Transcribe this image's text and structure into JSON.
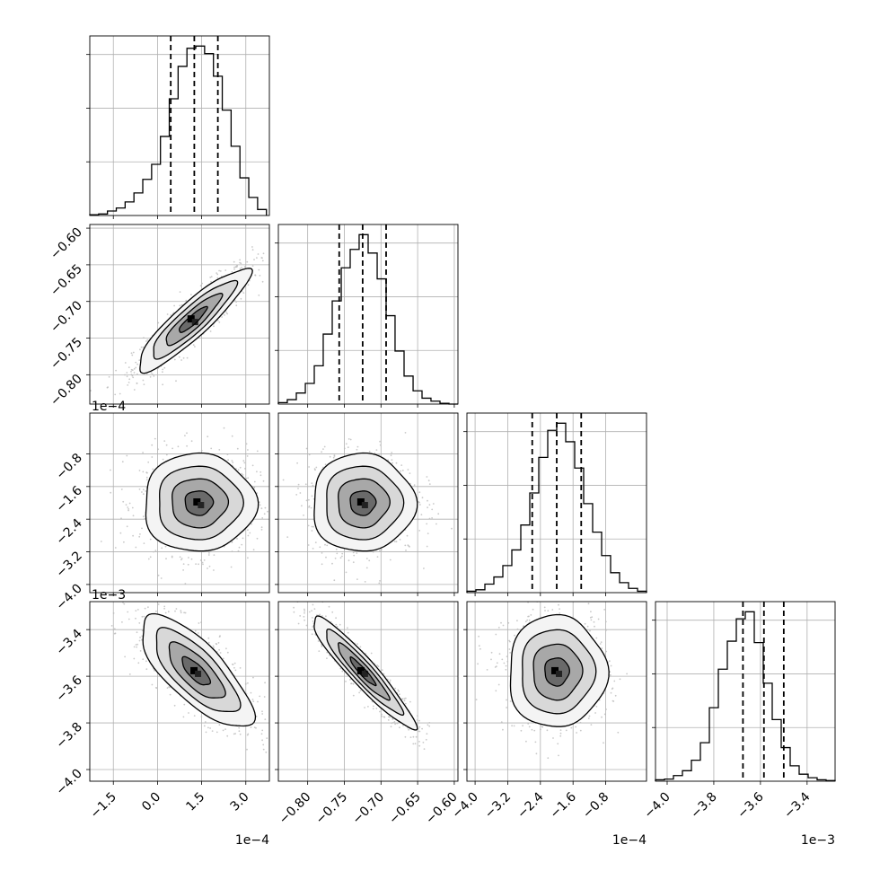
{
  "chart_data": {
    "type": "corner",
    "parameters": [
      {
        "index": 0,
        "range": [
          -2.3,
          3.8
        ],
        "multiplier_label": "1e−4",
        "ticks": [
          -1.5,
          0.0,
          1.5,
          3.0
        ],
        "tick_labels": [
          "−1.5",
          "0.0",
          "1.5",
          "3.0"
        ],
        "quantiles": [
          0.45,
          1.25,
          2.05
        ],
        "histogram": {
          "bin_edges": [
            -2.3,
            -2.0,
            -1.7,
            -1.4,
            -1.1,
            -0.8,
            -0.5,
            -0.2,
            0.1,
            0.4,
            0.7,
            1.0,
            1.3,
            1.6,
            1.9,
            2.2,
            2.5,
            2.8,
            3.1,
            3.4,
            3.7
          ],
          "counts": [
            1,
            2,
            6,
            10,
            18,
            30,
            48,
            68,
            105,
            155,
            198,
            222,
            225,
            215,
            185,
            140,
            92,
            50,
            24,
            8
          ]
        }
      },
      {
        "index": 1,
        "range": [
          -0.84,
          -0.595
        ],
        "ticks": [
          -0.8,
          -0.75,
          -0.7,
          -0.65,
          -0.6
        ],
        "tick_labels": [
          "−0.80",
          "−0.75",
          "−0.70",
          "−0.65",
          "−0.60"
        ],
        "quantiles": [
          -0.757,
          -0.725,
          -0.693
        ],
        "histogram": {
          "bin_edges": [
            -0.84,
            -0.8278,
            -0.8155,
            -0.8032,
            -0.791,
            -0.7788,
            -0.7665,
            -0.7542,
            -0.742,
            -0.7298,
            -0.7175,
            -0.7052,
            -0.693,
            -0.6808,
            -0.6685,
            -0.6562,
            -0.644,
            -0.6318,
            -0.6195,
            -0.6072,
            -0.595
          ],
          "counts": [
            2,
            6,
            15,
            28,
            52,
            95,
            140,
            185,
            210,
            230,
            205,
            170,
            120,
            72,
            38,
            18,
            8,
            4,
            1,
            0
          ]
        }
      },
      {
        "index": 2,
        "range": [
          -4.2,
          0.2
        ],
        "multiplier_label": "1e−4",
        "ticks": [
          -4.0,
          -3.2,
          -2.4,
          -1.6,
          -0.8
        ],
        "tick_labels": [
          "−4.0",
          "−3.2",
          "−2.4",
          "−1.6",
          "−0.8"
        ],
        "quantiles": [
          -2.6,
          -2.0,
          -1.4
        ],
        "histogram": {
          "bin_edges": [
            -4.2,
            -3.98,
            -3.76,
            -3.54,
            -3.32,
            -3.1,
            -2.88,
            -2.66,
            -2.44,
            -2.22,
            -2.0,
            -1.78,
            -1.56,
            -1.34,
            -1.12,
            -0.9,
            -0.68,
            -0.46,
            -0.24,
            -0.02,
            0.2
          ],
          "counts": [
            2,
            4,
            12,
            22,
            38,
            60,
            95,
            140,
            190,
            228,
            238,
            212,
            175,
            125,
            85,
            52,
            28,
            14,
            6,
            2
          ]
        }
      },
      {
        "index": 3,
        "range": [
          -4.05,
          -3.28
        ],
        "multiplier_label": "1e−3",
        "ticks": [
          -4.0,
          -3.8,
          -3.6,
          -3.4
        ],
        "tick_labels": [
          "−4.0",
          "−3.8",
          "−3.6",
          "−3.4"
        ],
        "quantiles": [
          -3.675,
          -3.585,
          -3.5
        ],
        "histogram": {
          "bin_edges": [
            -4.05,
            -4.0115,
            -3.973,
            -3.9345,
            -3.896,
            -3.8575,
            -3.819,
            -3.7805,
            -3.742,
            -3.7035,
            -3.665,
            -3.6265,
            -3.588,
            -3.5495,
            -3.511,
            -3.4725,
            -3.434,
            -3.3955,
            -3.357,
            -3.3185,
            -3.28
          ],
          "counts": [
            2,
            3,
            8,
            15,
            30,
            55,
            105,
            160,
            200,
            232,
            242,
            198,
            140,
            88,
            48,
            22,
            10,
            5,
            2,
            1
          ]
        }
      }
    ],
    "pairs": [
      {
        "x": 0,
        "y": 1,
        "mean": [
          1.2,
          -0.725
        ],
        "sd": [
          0.95,
          0.035
        ],
        "corr": 0.9
      },
      {
        "x": 0,
        "y": 2,
        "mean": [
          1.4,
          -2.0
        ],
        "sd": [
          0.95,
          0.6
        ],
        "corr": 0.0
      },
      {
        "x": 1,
        "y": 2,
        "mean": [
          -0.725,
          -2.0
        ],
        "sd": [
          0.035,
          0.6
        ],
        "corr": 0.0
      },
      {
        "x": 0,
        "y": 3,
        "mean": [
          1.3,
          -3.58
        ],
        "sd": [
          0.95,
          0.12
        ],
        "corr": -0.75
      },
      {
        "x": 1,
        "y": 3,
        "mean": [
          -0.725,
          -3.58
        ],
        "sd": [
          0.035,
          0.12
        ],
        "corr": -0.94
      },
      {
        "x": 2,
        "y": 3,
        "mean": [
          -2.0,
          -3.58
        ],
        "sd": [
          0.6,
          0.12
        ],
        "corr": 0.0
      }
    ],
    "contour_levels_sigma": [
      0.5,
      1.0,
      1.5,
      2.0
    ],
    "colors": {
      "line": "#000000",
      "grid": "#b0b0b0",
      "points": "#bbbbbb",
      "fill_light": "#f0f0f0",
      "fill_dark": "#000000"
    },
    "grid": true
  }
}
